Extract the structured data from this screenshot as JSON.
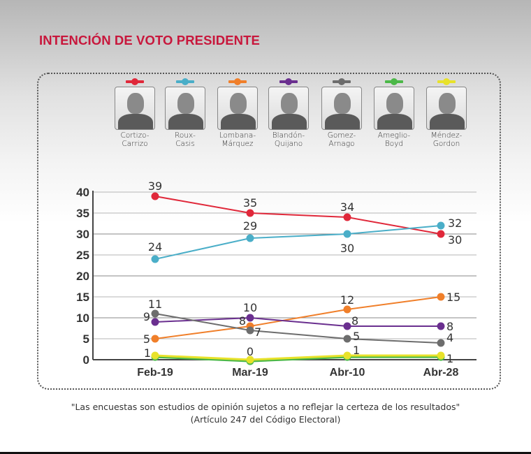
{
  "title": "INTENCIÓN DE VOTO PRESIDENTE",
  "candidates": [
    {
      "name_line1": "Cortizo-",
      "name_line2": "Carrizo",
      "color": "#e0283a"
    },
    {
      "name_line1": "Roux-",
      "name_line2": "Casis",
      "color": "#4aaec8"
    },
    {
      "name_line1": "Lombana-",
      "name_line2": "Márquez",
      "color": "#f07f2a"
    },
    {
      "name_line1": "Blandón-",
      "name_line2": "Quijano",
      "color": "#6a2f8f"
    },
    {
      "name_line1": "Gomez-",
      "name_line2": "Arnago",
      "color": "#6d6d6d"
    },
    {
      "name_line1": "Ameglio-",
      "name_line2": "Boyd",
      "color": "#4cb848"
    },
    {
      "name_line1": "Méndez-",
      "name_line2": "Gordon",
      "color": "#e8e22a"
    }
  ],
  "chart_data": {
    "type": "line",
    "title": "INTENCIÓN DE VOTO PRESIDENTE",
    "xlabel": "",
    "ylabel": "",
    "categories": [
      "Feb-19",
      "Mar-19",
      "Abr-10",
      "Abr-28"
    ],
    "ylim": [
      0,
      40
    ],
    "yticks": [
      0,
      5,
      10,
      15,
      20,
      25,
      30,
      35,
      40
    ],
    "grid": true,
    "legend": "top (candidate photos)",
    "series": [
      {
        "name": "Cortizo-Carrizo",
        "color": "#e0283a",
        "values": [
          39,
          35,
          34,
          30
        ],
        "labels": [
          "39",
          "35",
          "34",
          "30"
        ]
      },
      {
        "name": "Roux-Casis",
        "color": "#4aaec8",
        "values": [
          24,
          29,
          30,
          32
        ],
        "labels": [
          "24",
          "29",
          "30",
          "32"
        ]
      },
      {
        "name": "Lombana-Márquez",
        "color": "#f07f2a",
        "values": [
          5,
          8,
          12,
          15
        ],
        "labels": [
          "5",
          "8",
          "12",
          "15"
        ]
      },
      {
        "name": "Blandón-Quijano",
        "color": "#6a2f8f",
        "values": [
          9,
          10,
          8,
          8
        ],
        "labels": [
          "9",
          "10",
          "8",
          "8"
        ]
      },
      {
        "name": "Gomez-Arnago",
        "color": "#6d6d6d",
        "values": [
          11,
          7,
          5,
          4
        ],
        "labels": [
          "11",
          "7",
          "5",
          "4"
        ]
      },
      {
        "name": "Ameglio-Boyd",
        "color": "#4cb848",
        "values": [
          1,
          0,
          1,
          1
        ],
        "labels": [
          "",
          "",
          "",
          ""
        ]
      },
      {
        "name": "Méndez-Gordon",
        "color": "#e8e22a",
        "values": [
          1,
          0,
          1,
          1
        ],
        "labels": [
          "1",
          "0",
          "1",
          "1"
        ]
      }
    ]
  },
  "footnote": {
    "line1": "\"Las encuestas son estudios de opinión sujetos a no reflejar la certeza de los resultados\"",
    "line2": "(Artículo 247 del Código Electoral)"
  }
}
